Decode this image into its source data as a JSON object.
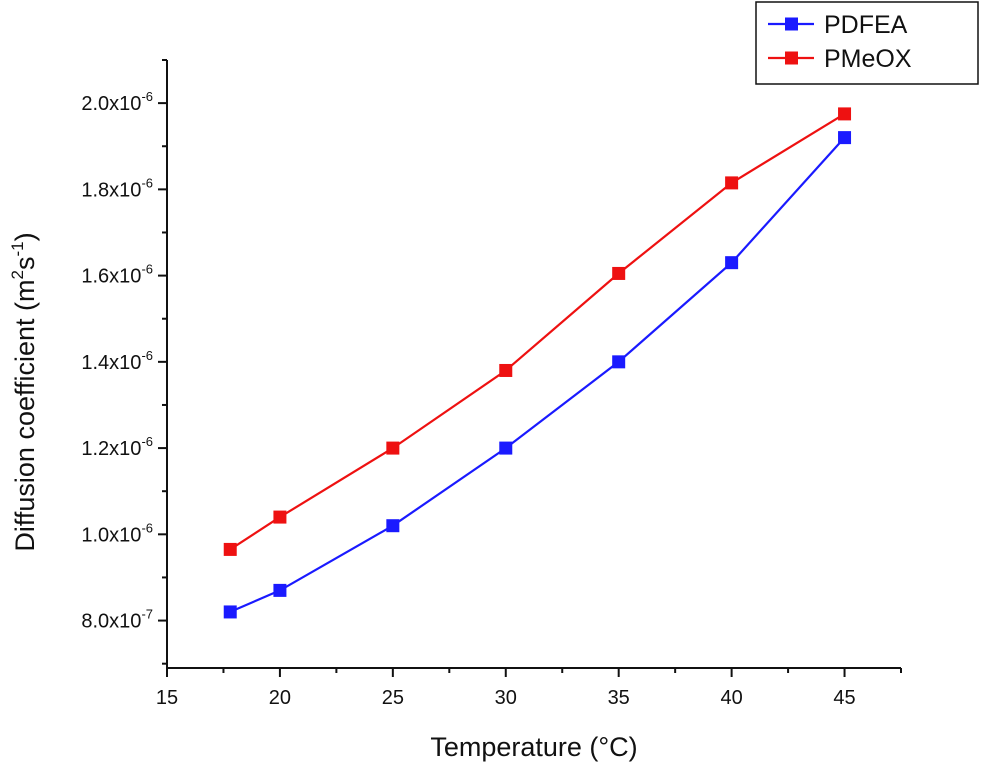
{
  "chart_data": {
    "type": "line",
    "x": [
      17.8,
      20,
      25,
      30,
      35,
      40,
      45
    ],
    "series": [
      {
        "name": "PDFEA",
        "color": "#1a1aff",
        "values": [
          8.2e-07,
          8.7e-07,
          1.02e-06,
          1.2e-06,
          1.4e-06,
          1.63e-06,
          1.92e-06
        ]
      },
      {
        "name": "PMeOX",
        "color": "#ee1111",
        "values": [
          9.65e-07,
          1.04e-06,
          1.2e-06,
          1.38e-06,
          1.605e-06,
          1.815e-06,
          1.975e-06
        ]
      }
    ],
    "xlabel": "Temperature (°C)",
    "ylabel": {
      "base": "Diffusion coefficient (m",
      "sup1": "2",
      "mid": "s",
      "sup2": "-1",
      "end": ")"
    },
    "xlim": [
      15,
      47.5
    ],
    "ylim": [
      6.9e-07,
      2.1e-06
    ],
    "xticks": [
      {
        "value": 15,
        "label": "15"
      },
      {
        "value": 20,
        "label": "20"
      },
      {
        "value": 25,
        "label": "25"
      },
      {
        "value": 30,
        "label": "30"
      },
      {
        "value": 35,
        "label": "35"
      },
      {
        "value": 40,
        "label": "40"
      },
      {
        "value": 45,
        "label": "45"
      }
    ],
    "yticks": [
      {
        "value": 8e-07,
        "mantissa": "8.0x10",
        "exponent": "-7"
      },
      {
        "value": 1e-06,
        "mantissa": "1.0x10",
        "exponent": "-6"
      },
      {
        "value": 1.2e-06,
        "mantissa": "1.2x10",
        "exponent": "-6"
      },
      {
        "value": 1.4e-06,
        "mantissa": "1.4x10",
        "exponent": "-6"
      },
      {
        "value": 1.6e-06,
        "mantissa": "1.6x10",
        "exponent": "-6"
      },
      {
        "value": 1.8e-06,
        "mantissa": "1.8x10",
        "exponent": "-6"
      },
      {
        "value": 2e-06,
        "mantissa": "2.0x10",
        "exponent": "-6"
      }
    ],
    "grid": false,
    "legend_position": "top-right",
    "marker": "square"
  }
}
